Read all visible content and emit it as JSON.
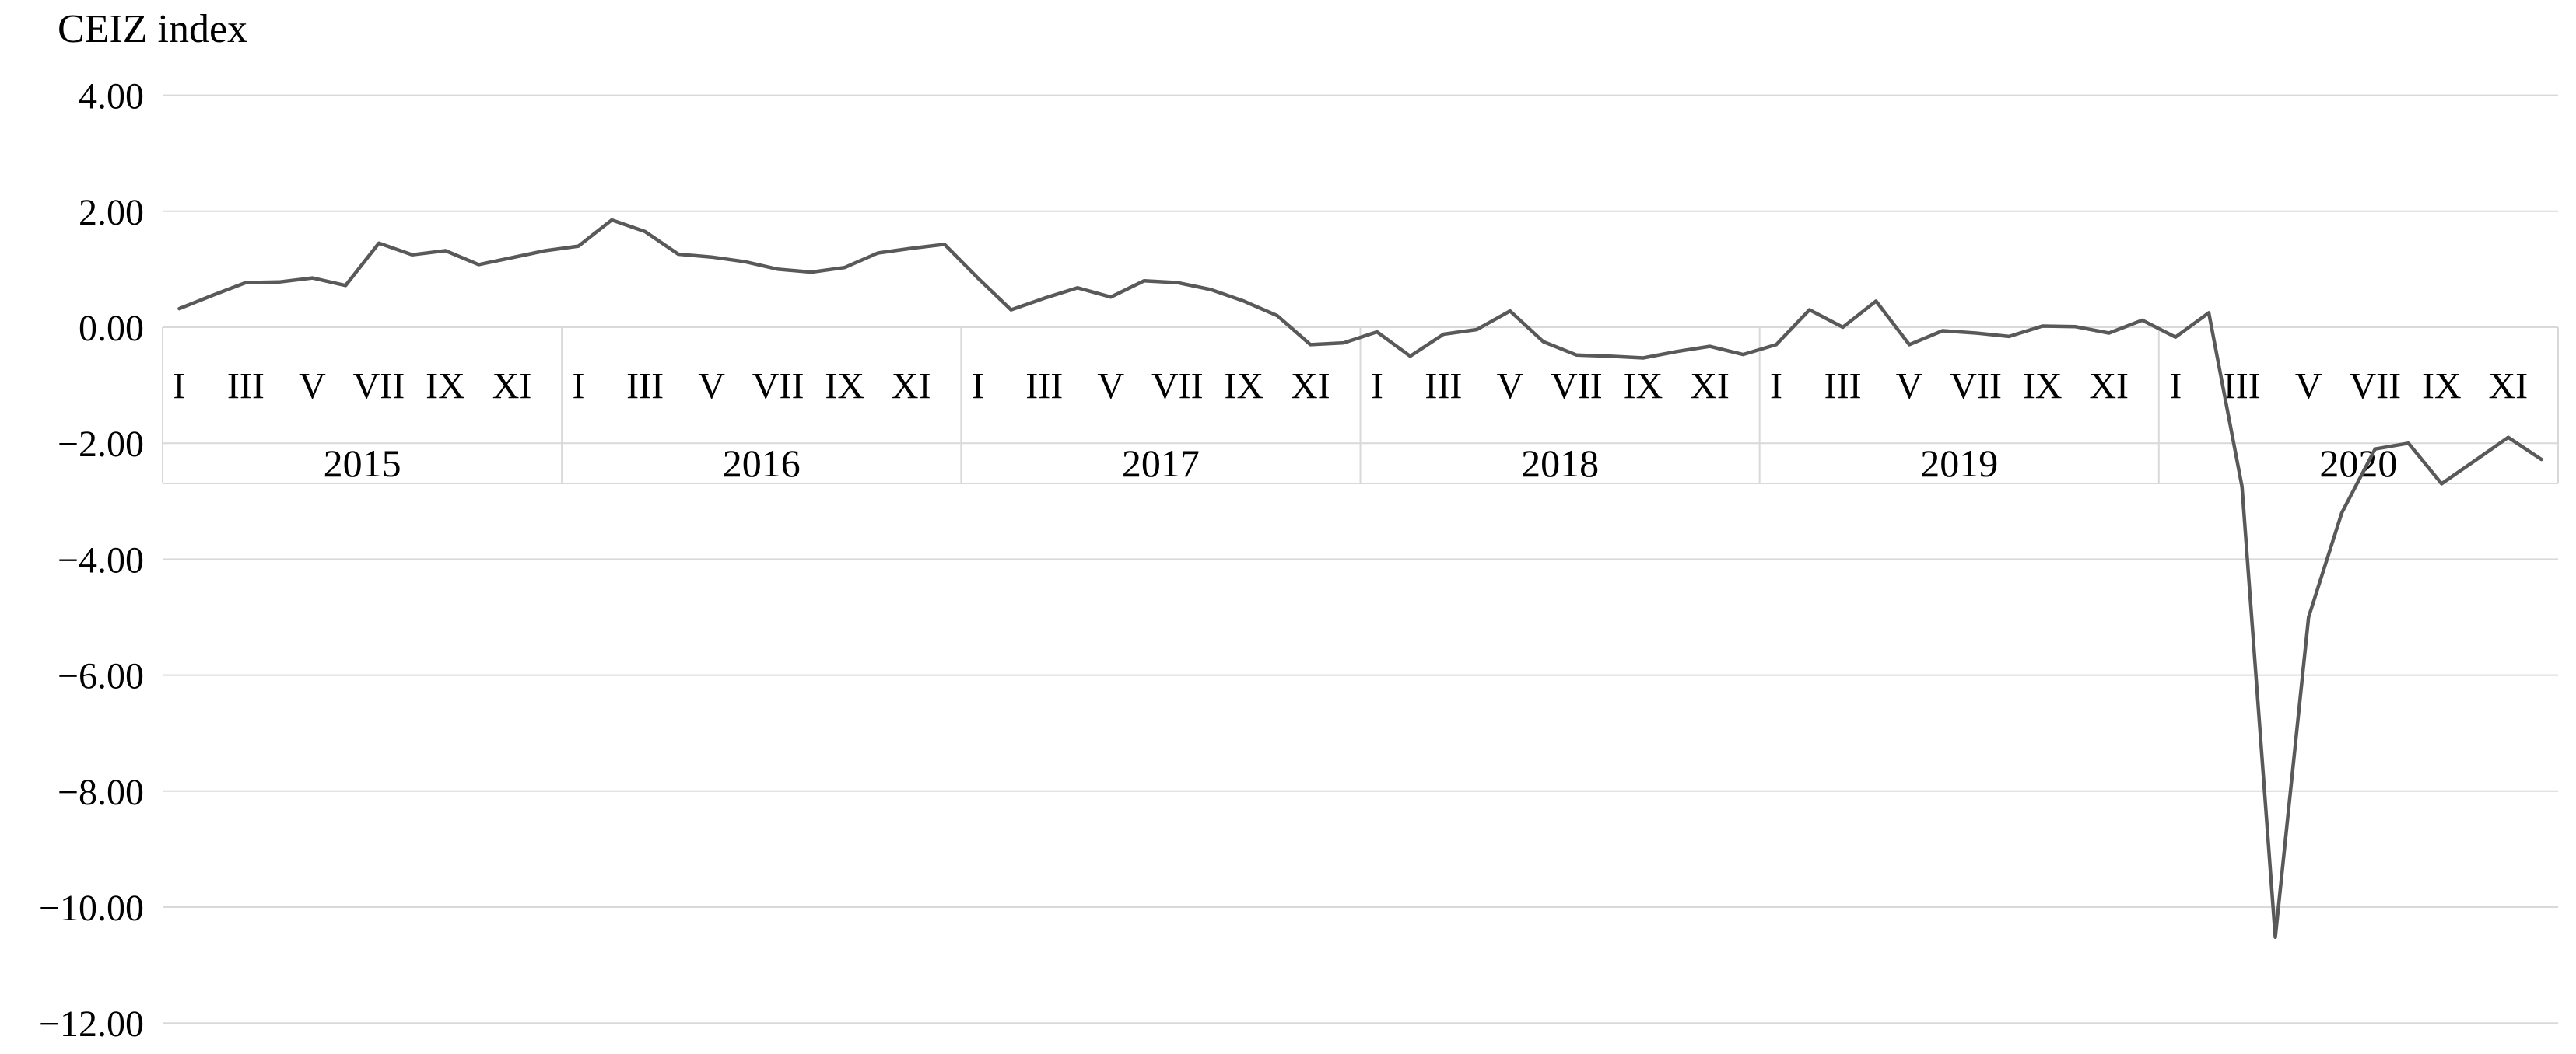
{
  "chart_data": {
    "type": "line",
    "title": "CEIZ index",
    "xlabel": "",
    "ylabel": "",
    "ylim": [
      -12,
      4
    ],
    "ytick_step": 2,
    "ytick_labels": [
      "4.00",
      "2.00",
      "0.00",
      "−2.00",
      "−4.00",
      "−6.00",
      "−8.00",
      "−10.00",
      "−12.00"
    ],
    "grid": "horizontal",
    "legend_position": "none",
    "years": [
      "2015",
      "2016",
      "2017",
      "2018",
      "2019",
      "2020"
    ],
    "month_tick_labels": [
      "I",
      "III",
      "V",
      "VII",
      "IX",
      "XI"
    ],
    "series": [
      {
        "name": "CEIZ index",
        "values": [
          0.32,
          0.55,
          0.77,
          0.78,
          0.85,
          0.72,
          1.45,
          1.25,
          1.32,
          1.08,
          1.2,
          1.32,
          1.4,
          1.85,
          1.65,
          1.26,
          1.21,
          1.13,
          1.0,
          0.95,
          1.03,
          1.28,
          1.36,
          1.43,
          0.85,
          0.3,
          0.5,
          0.68,
          0.52,
          0.8,
          0.77,
          0.65,
          0.45,
          0.2,
          -0.3,
          -0.27,
          -0.08,
          -0.5,
          -0.12,
          -0.04,
          0.28,
          -0.25,
          -0.48,
          -0.5,
          -0.53,
          -0.42,
          -0.33,
          -0.47,
          -0.3,
          0.3,
          0.0,
          0.45,
          -0.3,
          -0.06,
          -0.1,
          -0.16,
          0.02,
          0.01,
          -0.1,
          0.12,
          -0.17,
          0.25,
          -2.75,
          -10.52,
          -5.0,
          -3.2,
          -2.1,
          -2.0,
          -2.7,
          -2.3,
          -1.9,
          -2.28
        ]
      }
    ],
    "colors": {
      "line": "#595959",
      "gridline": "#D9D9D9",
      "text": "#000000",
      "background": "#FFFFFF"
    }
  }
}
